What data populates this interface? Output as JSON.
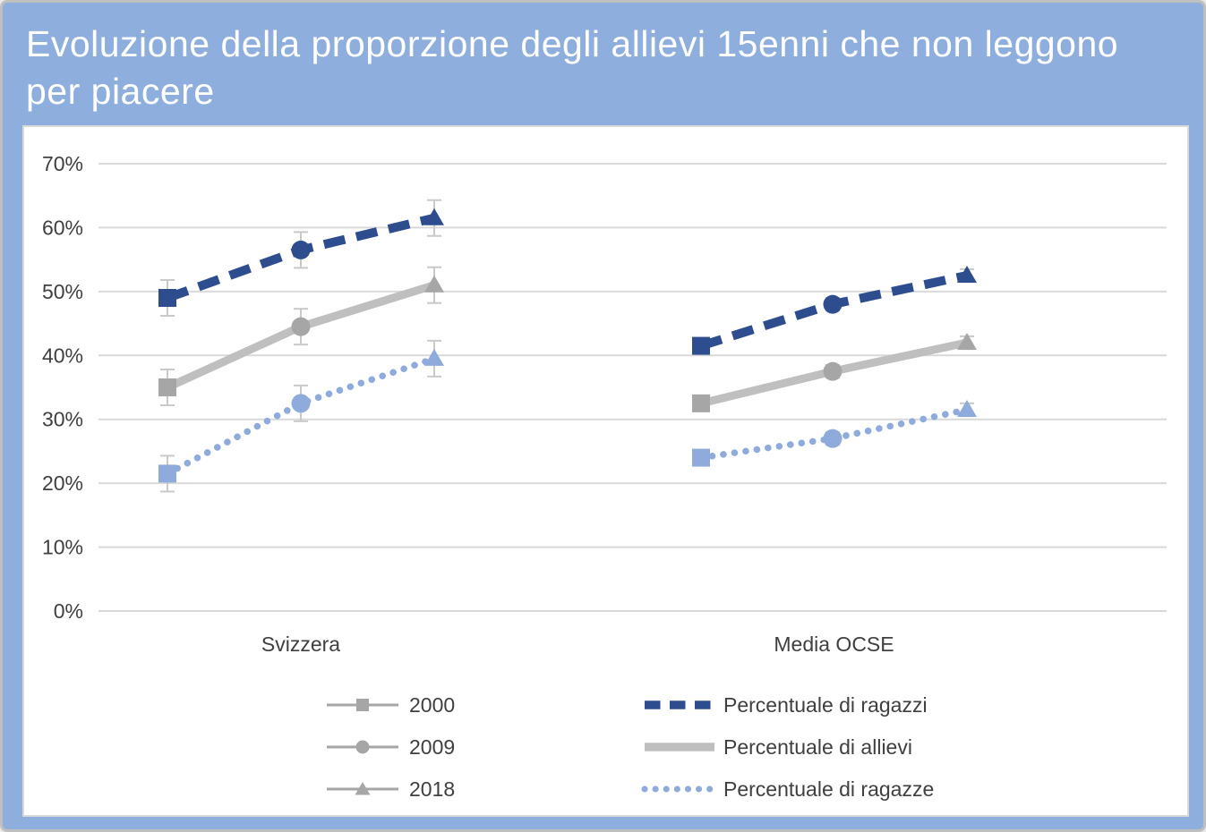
{
  "header": {
    "title": "Evoluzione della proporzione degli allievi 15enni che non leggono per piacere",
    "background_color": "#8eafdd",
    "text_color": "#ffffff"
  },
  "chart_data": {
    "type": "line",
    "title": "Evoluzione della proporzione degli allievi 15enni che non leggono per piacere",
    "groups": [
      "Svizzera",
      "Media OCSE"
    ],
    "years": [
      "2000",
      "2009",
      "2018"
    ],
    "year_markers": {
      "2000": "square",
      "2009": "circle",
      "2018": "triangle"
    },
    "y_axis": {
      "min": 0,
      "max": 70,
      "tick_step": 10,
      "tick_labels": [
        "0%",
        "10%",
        "20%",
        "30%",
        "40%",
        "50%",
        "60%",
        "70%"
      ],
      "grid": true
    },
    "series": [
      {
        "name": "Percentuale di ragazzi",
        "line_style": "dashed",
        "color": "#2d4d8f",
        "values": {
          "Svizzera": [
            49,
            56.5,
            61.5
          ],
          "Media OCSE": [
            41.5,
            48,
            52.5
          ]
        }
      },
      {
        "name": "Percentuale di allievi",
        "line_style": "solid",
        "color": "#bfbfbf",
        "marker_color": "#a6a6a6",
        "values": {
          "Svizzera": [
            35,
            44.5,
            51
          ],
          "Media OCSE": [
            32.5,
            37.5,
            42
          ]
        }
      },
      {
        "name": "Percentuale di ragazze",
        "line_style": "dotted",
        "color": "#8fabdc",
        "values": {
          "Svizzera": [
            21.5,
            32.5,
            39.5
          ],
          "Media OCSE": [
            24,
            27,
            31.5
          ]
        }
      }
    ],
    "error_bars_pct": {
      "Svizzera": 2.8,
      "Media OCSE": 1.0
    },
    "legend_position": "bottom",
    "colors": {
      "gridline": "#d9d9d9",
      "error_bar": "#c9c9c9",
      "axis_text": "#3f3f3f",
      "legend_year_marker": "#a6a6a6"
    }
  }
}
